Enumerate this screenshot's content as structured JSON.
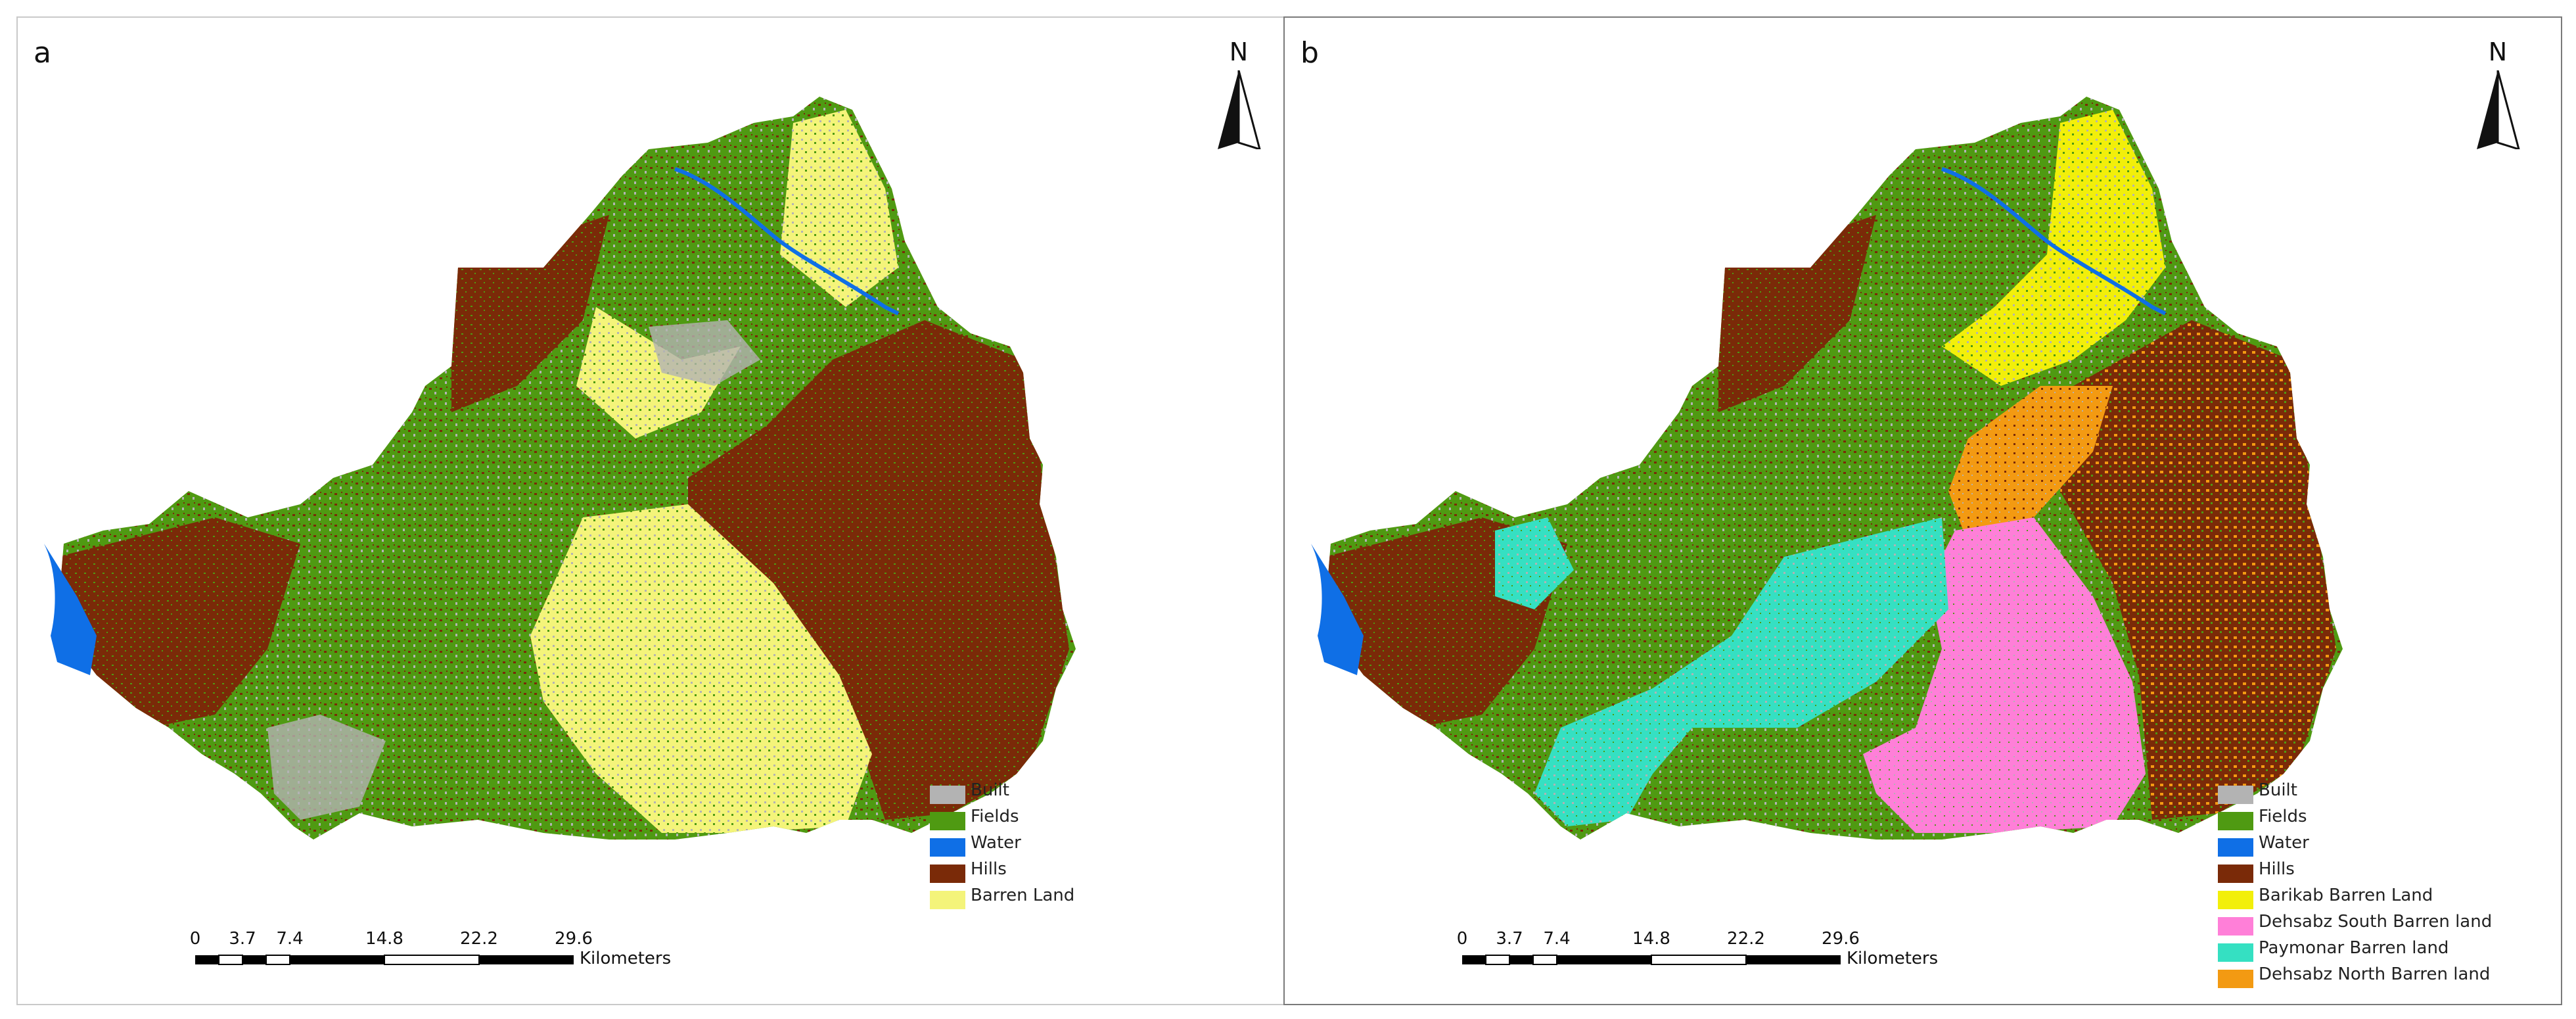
{
  "panels": [
    {
      "letter": "a",
      "north_label": "N",
      "legend": [
        {
          "label": "Built",
          "color": "#b3b3b3"
        },
        {
          "label": "Fields",
          "color": "#4f9a12"
        },
        {
          "label": "Water",
          "color": "#0f6fe6"
        },
        {
          "label": "Hills",
          "color": "#7a2a08"
        },
        {
          "label": "Barren Land",
          "color": "#f4f47a"
        }
      ],
      "scale": {
        "ticks": [
          "0",
          "3.7",
          "7.4",
          "14.8",
          "22.2",
          "29.6"
        ],
        "units": "Kilometers"
      }
    },
    {
      "letter": "b",
      "north_label": "N",
      "legend": [
        {
          "label": "Built",
          "color": "#b3b3b3"
        },
        {
          "label": "Fields",
          "color": "#4f9a12"
        },
        {
          "label": "Water",
          "color": "#0f6fe6"
        },
        {
          "label": "Hills",
          "color": "#7a2a08"
        },
        {
          "label": "Barikab Barren Land",
          "color": "#f2ef0a"
        },
        {
          "label": "Dehsabz South Barren land",
          "color": "#ff7fd8"
        },
        {
          "label": "Paymonar Barren land",
          "color": "#35e0c2"
        },
        {
          "label": "Dehsabz North Barren land",
          "color": "#f39a12"
        }
      ],
      "scale": {
        "ticks": [
          "0",
          "3.7",
          "7.4",
          "14.8",
          "22.2",
          "29.6"
        ],
        "units": "Kilometers"
      }
    }
  ]
}
